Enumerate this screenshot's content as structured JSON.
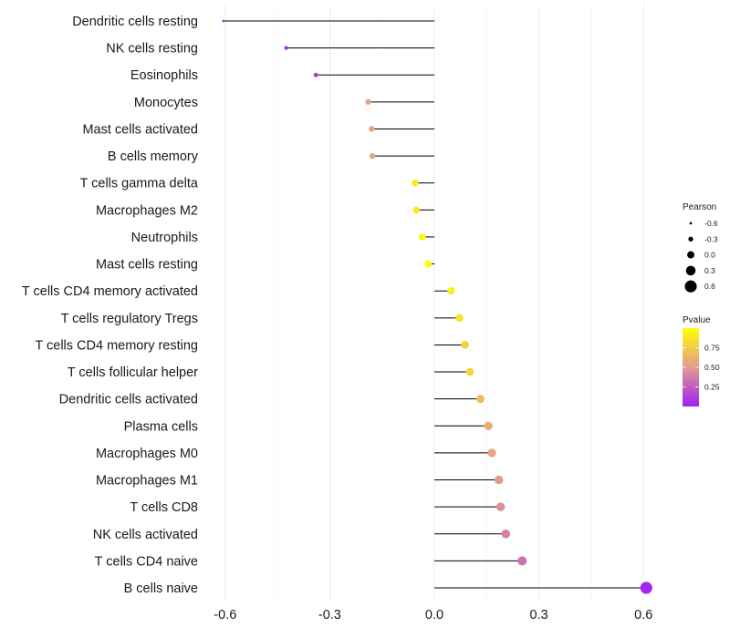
{
  "chart_data": {
    "type": "lollipop",
    "title": "",
    "xlabel": "",
    "ylabel": "",
    "xlim": [
      -0.7,
      0.65
    ],
    "xticks": [
      -0.6,
      -0.3,
      0.0,
      0.3,
      0.6
    ],
    "xtick_labels": [
      "-0.6",
      "-0.3",
      "0.0",
      "0.3",
      "0.6"
    ],
    "grid": "vertical",
    "categories": [
      "Dendritic cells resting",
      "NK cells resting",
      "Eosinophils",
      "Monocytes",
      "Mast cells activated",
      "B cells memory",
      "T cells gamma delta",
      "Macrophages M2",
      "Neutrophils",
      "Mast cells resting",
      "T cells CD4 memory activated",
      "T cells regulatory  Tregs ",
      "T cells CD4 memory resting",
      "T cells follicular helper",
      "Dendritic cells activated",
      "Plasma cells",
      "Macrophages M0",
      "Macrophages M1",
      "T cells CD8",
      "NK cells activated",
      "T cells CD4 naive",
      "B cells naive"
    ],
    "pearson": [
      -0.605,
      -0.425,
      -0.34,
      -0.19,
      -0.18,
      -0.178,
      -0.055,
      -0.052,
      -0.035,
      -0.018,
      0.048,
      0.072,
      0.088,
      0.102,
      0.132,
      0.155,
      0.165,
      0.185,
      0.19,
      0.205,
      0.252,
      0.608
    ],
    "pvalue": [
      0.02,
      0.05,
      0.12,
      0.55,
      0.55,
      0.55,
      0.9,
      0.9,
      0.97,
      0.99,
      0.92,
      0.86,
      0.78,
      0.8,
      0.66,
      0.6,
      0.55,
      0.5,
      0.46,
      0.4,
      0.33,
      0.03
    ],
    "legend": {
      "size": {
        "title": "Pearson",
        "values": [
          -0.6,
          -0.3,
          0.0,
          0.3,
          0.6
        ],
        "labels": [
          "-0.6",
          "-0.3",
          "0.0",
          "0.3",
          "0.6"
        ]
      },
      "color": {
        "title": "Pvalue",
        "ticks": [
          0.75,
          0.5,
          0.25
        ],
        "labels": [
          "0.75",
          "0.50",
          "0.25"
        ],
        "range": [
          0.0,
          1.0
        ],
        "low_color": "#a020f0",
        "mid_color": "#e39a92",
        "high_color": "#ffff00"
      }
    },
    "colors": {
      "segment": "#000000",
      "grid": "#ebebeb"
    }
  }
}
